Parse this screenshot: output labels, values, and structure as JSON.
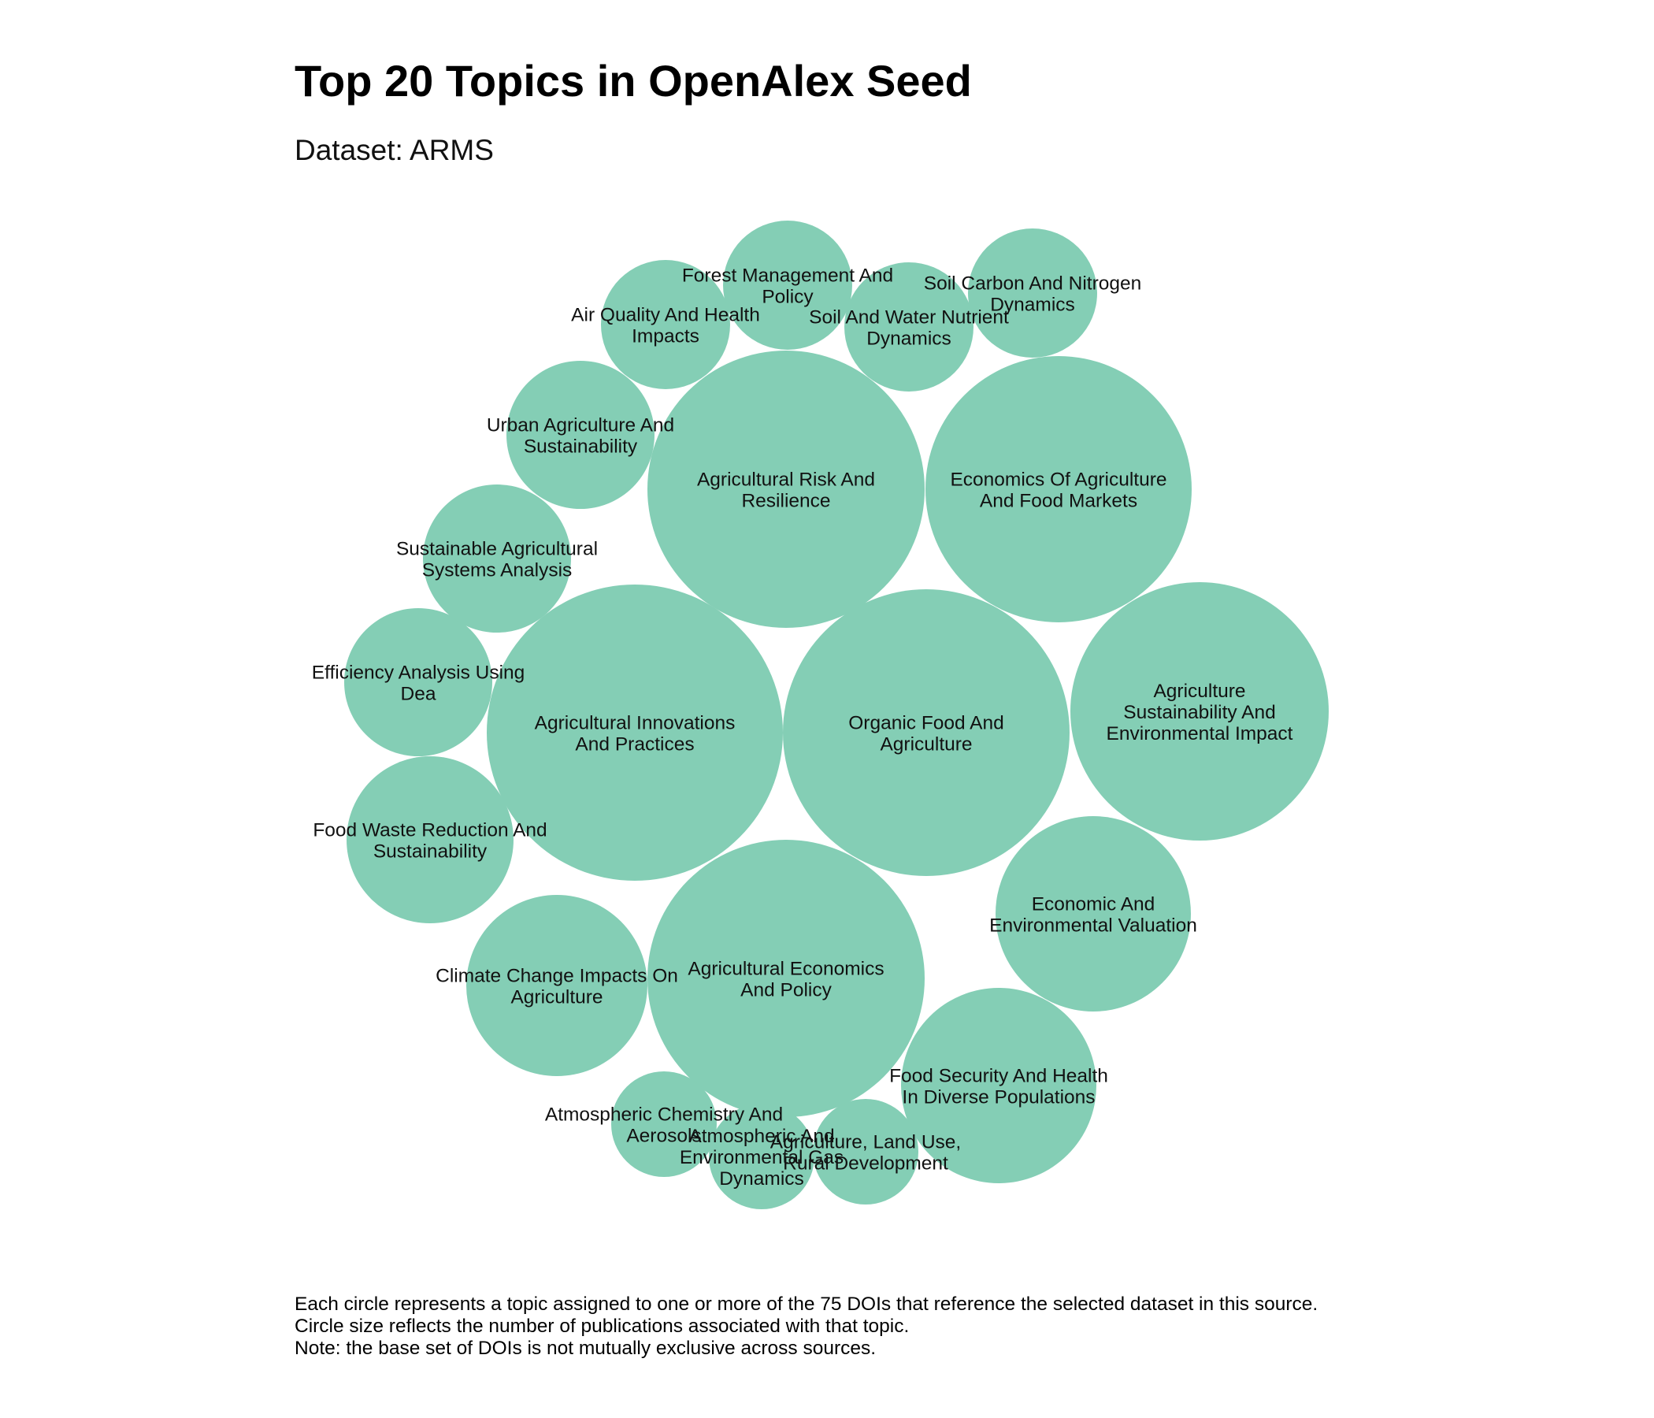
{
  "title": "Top 20 Topics in OpenAlex Seed",
  "subtitle": "Dataset: ARMS",
  "caption": [
    "Each circle represents a topic assigned to one or more of the 75 DOIs that reference the selected dataset in this source.",
    "Circle size reflects the number of publications associated with that topic.",
    "Note: the base set of DOIs is not mutually exclusive across sources."
  ],
  "colors": {
    "bubble": "#84CEB5",
    "label": "#111111"
  },
  "chart_data": {
    "type": "packed-bubble",
    "title": "Top 20 Topics in OpenAlex Seed",
    "subtitle": "Dataset: ARMS",
    "topics": [
      {
        "name": "Agricultural Innovations And Practices",
        "lines": [
          "Agricultural Innovations",
          "And Practices"
        ],
        "value": 13
      },
      {
        "name": "Organic Food And Agriculture",
        "lines": [
          "Organic Food And",
          "Agriculture"
        ],
        "value": 13
      },
      {
        "name": "Agricultural Risk And Resilience",
        "lines": [
          "Agricultural Risk And",
          "Resilience"
        ],
        "value": 12
      },
      {
        "name": "Agricultural Economics And Policy",
        "lines": [
          "Agricultural Economics",
          "And Policy"
        ],
        "value": 12
      },
      {
        "name": "Economics Of Agriculture And Food Markets",
        "lines": [
          "Economics Of Agriculture",
          "And Food Markets"
        ],
        "value": 11
      },
      {
        "name": "Agriculture Sustainability And Environmental Impact",
        "lines": [
          "Agriculture",
          "Sustainability And",
          "Environmental Impact"
        ],
        "value": 10
      },
      {
        "name": "Economic And Environmental Valuation",
        "lines": [
          "Economic And",
          "Environmental Valuation"
        ],
        "value": 6
      },
      {
        "name": "Food Security And Health In Diverse Populations",
        "lines": [
          "Food Security And Health",
          "In Diverse Populations"
        ],
        "value": 6
      },
      {
        "name": "Climate Change Impacts On Agriculture",
        "lines": [
          "Climate Change Impacts On",
          "Agriculture"
        ],
        "value": 5
      },
      {
        "name": "Efficiency Analysis Using Dea",
        "lines": [
          "Efficiency Analysis Using",
          "Dea"
        ],
        "value": 3
      },
      {
        "name": "Food Waste Reduction And Sustainability",
        "lines": [
          "Food Waste Reduction And",
          "Sustainability"
        ],
        "value": 4
      },
      {
        "name": "Sustainable Agricultural Systems Analysis",
        "lines": [
          "Sustainable Agricultural",
          "Systems Analysis"
        ],
        "value": 3
      },
      {
        "name": "Urban Agriculture And Sustainability",
        "lines": [
          "Urban Agriculture And",
          "Sustainability"
        ],
        "value": 3
      },
      {
        "name": "Air Quality And Health Impacts",
        "lines": [
          "Air Quality And Health",
          "Impacts"
        ],
        "value": 2
      },
      {
        "name": "Forest Management And Policy",
        "lines": [
          "Forest Management And",
          "Policy"
        ],
        "value": 2
      },
      {
        "name": "Soil And Water Nutrient Dynamics",
        "lines": [
          "Soil And Water Nutrient",
          "Dynamics"
        ],
        "value": 2
      },
      {
        "name": "Soil Carbon And Nitrogen Dynamics",
        "lines": [
          "Soil Carbon And Nitrogen",
          "Dynamics"
        ],
        "value": 2
      },
      {
        "name": "Atmospheric Chemistry And Aerosols",
        "lines": [
          "Atmospheric Chemistry And",
          "Aerosols"
        ],
        "value": 1
      },
      {
        "name": "Atmospheric And Environmental Gas Dynamics",
        "lines": [
          "Atmospheric And",
          "Environmental Gas",
          "Dynamics"
        ],
        "value": 1
      },
      {
        "name": "Agriculture, Land Use, Rural Development",
        "lines": [
          "Agriculture, Land Use,",
          "Rural Development"
        ],
        "value": 1
      }
    ]
  }
}
